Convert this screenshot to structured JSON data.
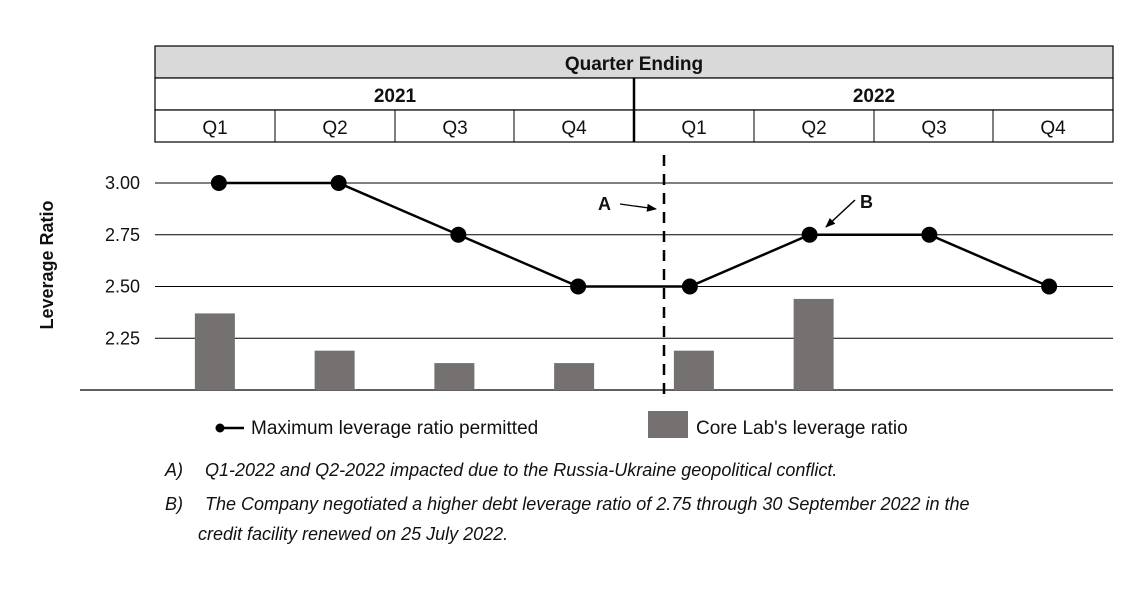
{
  "chart_data": {
    "type": "bar+line",
    "header_title": "Quarter Ending",
    "years": [
      {
        "label": "2021",
        "quarters": [
          "Q1",
          "Q2",
          "Q3",
          "Q4"
        ]
      },
      {
        "label": "2022",
        "quarters": [
          "Q1",
          "Q2",
          "Q3",
          "Q4"
        ]
      }
    ],
    "categories": [
      "Q1-2021",
      "Q2-2021",
      "Q3-2021",
      "Q4-2021",
      "Q1-2022",
      "Q2-2022",
      "Q3-2022",
      "Q4-2022"
    ],
    "ylabel": "Leverage Ratio",
    "ylim": [
      2.0,
      3.0
    ],
    "yticks": [
      {
        "value": 3.0,
        "label": "3.00"
      },
      {
        "value": 2.75,
        "label": "2.75"
      },
      {
        "value": 2.5,
        "label": "2.50"
      },
      {
        "value": 2.25,
        "label": "2.25"
      }
    ],
    "grid": true,
    "series": [
      {
        "name": "Maximum leverage ratio permitted",
        "kind": "line",
        "color": "#000000",
        "values": [
          3.0,
          3.0,
          2.75,
          2.5,
          2.5,
          2.75,
          2.75,
          2.5
        ]
      },
      {
        "name": "Core Lab's leverage ratio",
        "kind": "bar",
        "color": "#767171",
        "values": [
          2.37,
          2.19,
          2.13,
          2.13,
          2.19,
          2.44,
          null,
          null
        ]
      }
    ],
    "annotations": [
      {
        "label": "A",
        "target": "dashed-divider"
      },
      {
        "label": "B",
        "target": "Q2-2022 point"
      }
    ],
    "legend": [
      {
        "label": "Maximum leverage ratio permitted",
        "marker": "line-dot"
      },
      {
        "label": "Core Lab's leverage ratio",
        "marker": "bar"
      }
    ],
    "notes": [
      {
        "letter": "A)",
        "lines": [
          "Q1-2022 and Q2-2022 impacted due to the Russia-Ukraine geopolitical conflict."
        ]
      },
      {
        "letter": "B)",
        "lines": [
          "The Company negotiated a higher debt leverage ratio of 2.75 through 30 September 2022 in the",
          "credit facility renewed on 25 July 2022."
        ]
      }
    ]
  }
}
